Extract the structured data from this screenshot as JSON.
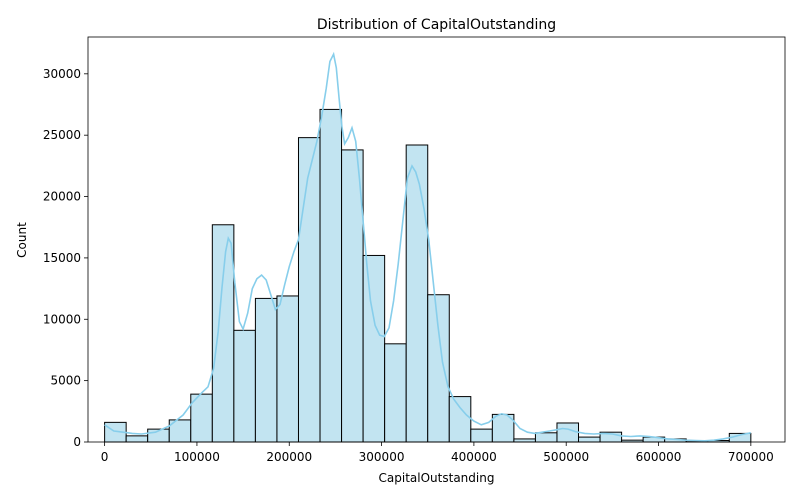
{
  "chart_data": {
    "type": "bar",
    "title": "Distribution of CapitalOutstanding",
    "xlabel": "CapitalOutstanding",
    "ylabel": "Count",
    "xlim": [
      -18000,
      737000
    ],
    "ylim": [
      0,
      33000
    ],
    "grid": false,
    "bar_color": "#c2e4f1",
    "bar_edge_color": "#000000",
    "kde_color": "#87ceeb",
    "x_ticks": [
      0,
      100000,
      200000,
      300000,
      400000,
      500000,
      600000,
      700000
    ],
    "x_tick_labels": [
      "0",
      "100000",
      "200000",
      "300000",
      "400000",
      "500000",
      "600000",
      "700000"
    ],
    "y_ticks": [
      0,
      5000,
      10000,
      15000,
      20000,
      25000,
      30000
    ],
    "y_tick_labels": [
      "0",
      "5000",
      "10000",
      "15000",
      "20000",
      "25000",
      "30000"
    ],
    "bin_edges": [
      0,
      23333,
      46667,
      70000,
      93333,
      116667,
      140000,
      163333,
      186667,
      210000,
      233333,
      256667,
      280000,
      303333,
      326667,
      350000,
      373333,
      396667,
      420000,
      443333,
      466667,
      490000,
      513333,
      536667,
      560000,
      583333,
      606667,
      630000,
      653333,
      676667,
      700000
    ],
    "counts": [
      1600,
      500,
      1050,
      1800,
      3900,
      17700,
      9100,
      11700,
      11900,
      24800,
      27100,
      23800,
      15200,
      8000,
      24200,
      12000,
      3700,
      1050,
      2250,
      250,
      750,
      1550,
      400,
      800,
      150,
      400,
      250,
      100,
      120,
      700
    ],
    "kde": {
      "x": [
        0,
        10000,
        20000,
        30000,
        40000,
        55000,
        70000,
        85000,
        95000,
        105000,
        112000,
        118000,
        123000,
        127000,
        131000,
        134000,
        137000,
        141000,
        146000,
        150000,
        155000,
        160000,
        165000,
        170000,
        175000,
        180000,
        185000,
        190000,
        195000,
        200000,
        205000,
        210000,
        215000,
        220000,
        225000,
        230000,
        235000,
        240000,
        244000,
        248000,
        251000,
        254000,
        257000,
        260000,
        264000,
        268000,
        272000,
        276000,
        280000,
        284000,
        288000,
        293000,
        298000,
        303000,
        308000,
        313000,
        318000,
        323000,
        328000,
        333000,
        337000,
        341000,
        346000,
        351000,
        356000,
        361000,
        366000,
        372000,
        378000,
        385000,
        392000,
        400000,
        408000,
        416000,
        424000,
        430000,
        436000,
        442000,
        450000,
        458000,
        466000,
        474000,
        482000,
        490000,
        496000,
        502000,
        510000,
        520000,
        530000,
        540000,
        550000,
        560000,
        570000,
        580000,
        590000,
        600000,
        610000,
        620000,
        630000,
        640000,
        650000,
        660000,
        670000,
        680000,
        690000,
        700000
      ],
      "y": [
        1400,
        900,
        800,
        700,
        650,
        800,
        1300,
        2200,
        3200,
        4000,
        4500,
        6000,
        9000,
        12500,
        15500,
        16600,
        16200,
        13000,
        9800,
        9200,
        10500,
        12500,
        13300,
        13600,
        13200,
        12000,
        10800,
        11200,
        12800,
        14300,
        15500,
        16500,
        19000,
        21500,
        23000,
        24500,
        26500,
        28800,
        31000,
        31600,
        30500,
        28000,
        25700,
        24300,
        24800,
        25600,
        24500,
        21500,
        18000,
        14500,
        11500,
        9500,
        8700,
        8600,
        9300,
        11500,
        14500,
        18000,
        21500,
        22500,
        22000,
        21000,
        19000,
        16500,
        13000,
        9500,
        6500,
        4500,
        3500,
        2800,
        2200,
        1700,
        1400,
        1600,
        2100,
        2300,
        2200,
        1800,
        1100,
        800,
        700,
        800,
        900,
        1000,
        1100,
        1050,
        850,
        700,
        650,
        700,
        650,
        500,
        450,
        500,
        450,
        350,
        250,
        200,
        150,
        120,
        100,
        150,
        250,
        400,
        600,
        750
      ]
    }
  }
}
